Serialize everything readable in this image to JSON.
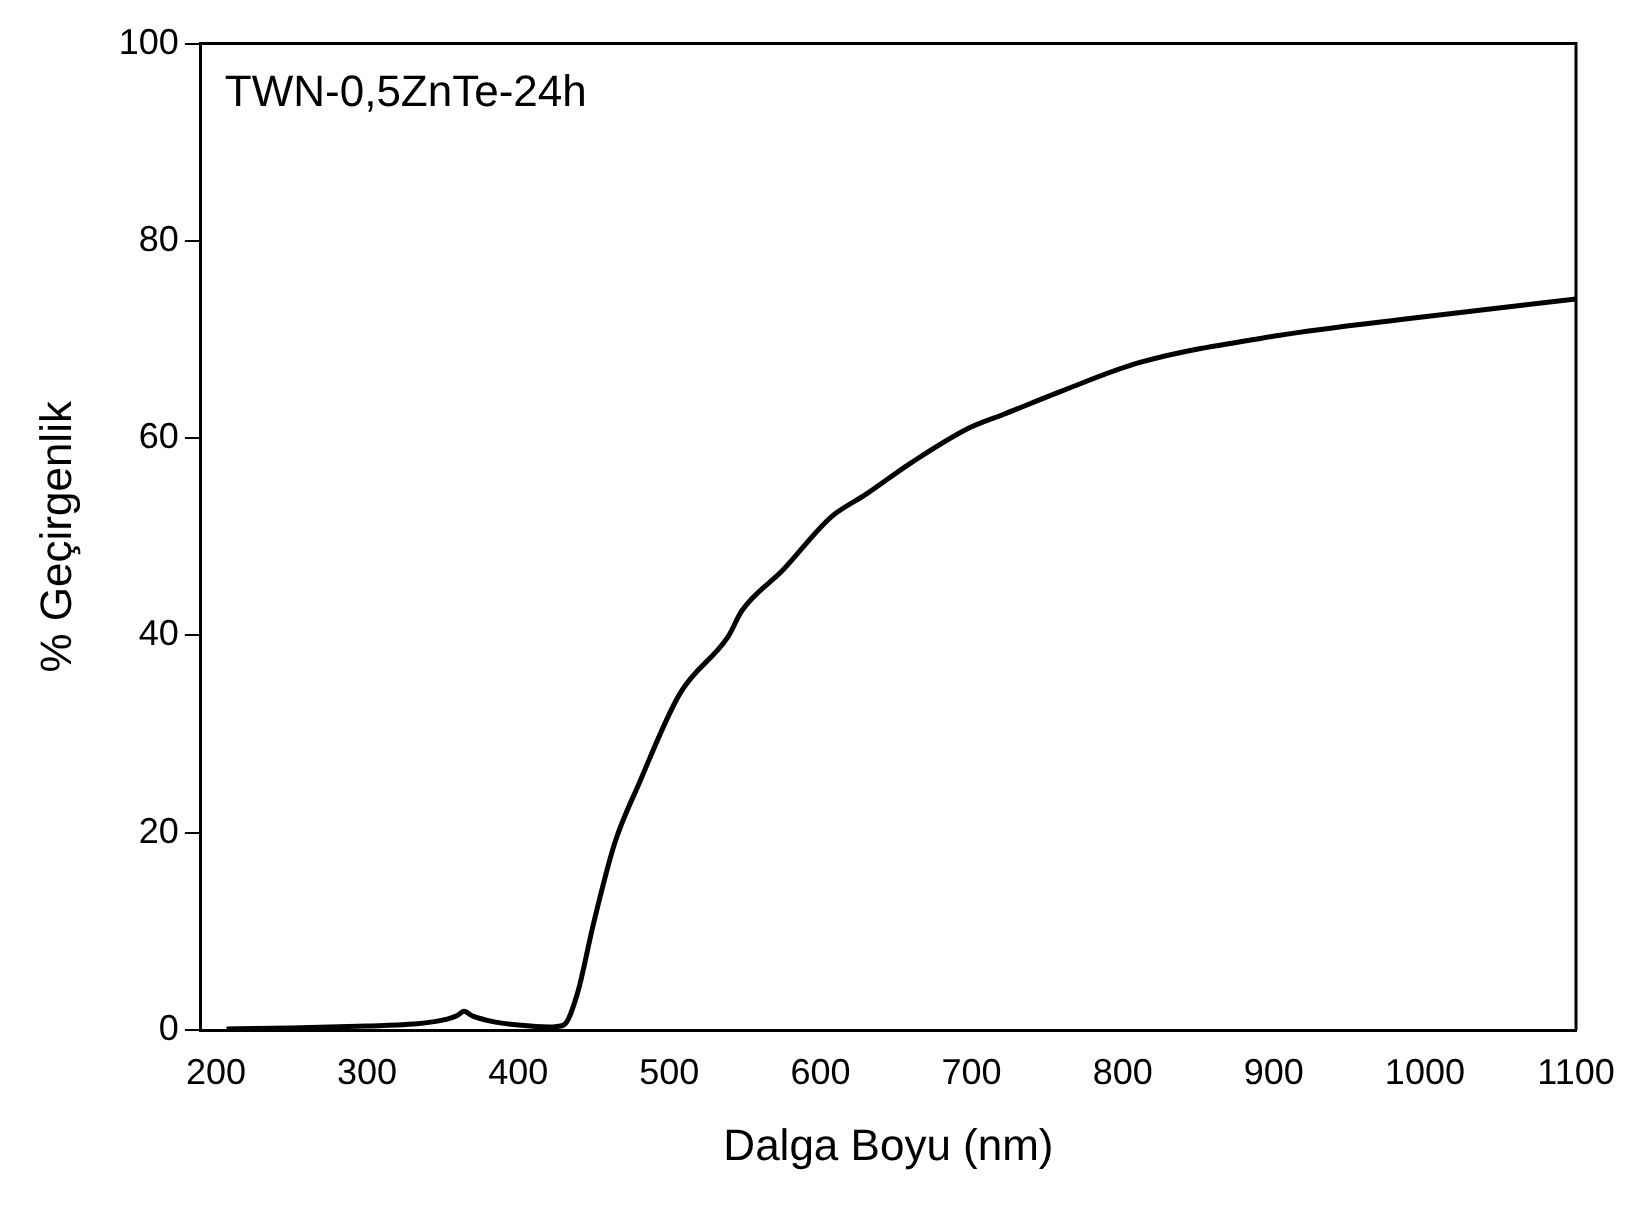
{
  "chart_data": {
    "type": "line",
    "annotations": [
      "TWN-0,5ZnTe-24h"
    ],
    "xlabel": "Dalga Boyu (nm)",
    "ylabel": "% Geçirgenlik",
    "series": [
      {
        "color": "#000000",
        "x": [
          207,
          250,
          300,
          330,
          350,
          360,
          364,
          370,
          385,
          400,
          420,
          430,
          439,
          450,
          464,
          480,
          507,
          539,
          548,
          575,
          607,
          630,
          660,
          698,
          721,
          760,
          812,
          903,
          994,
          1100
        ],
        "values": [
          0.1,
          0.2,
          0.4,
          0.6,
          1.0,
          1.5,
          1.9,
          1.4,
          0.8,
          0.5,
          0.3,
          0.5,
          3.6,
          10.9,
          19,
          25,
          34.1,
          39.9,
          42.5,
          46.6,
          52,
          54.3,
          57.5,
          61,
          62.4,
          64.8,
          67.7,
          70.4,
          72.2,
          74.1
        ]
      }
    ],
    "xlim": [
      190,
      1100
    ],
    "xticks": [
      200,
      300,
      400,
      500,
      600,
      700,
      800,
      900,
      1000,
      1100
    ],
    "ylim": [
      0,
      100
    ],
    "yticks": [
      0,
      20,
      40,
      60,
      80,
      100
    ],
    "grid": false,
    "legend": false,
    "marker": "none",
    "line_style": "solid"
  }
}
